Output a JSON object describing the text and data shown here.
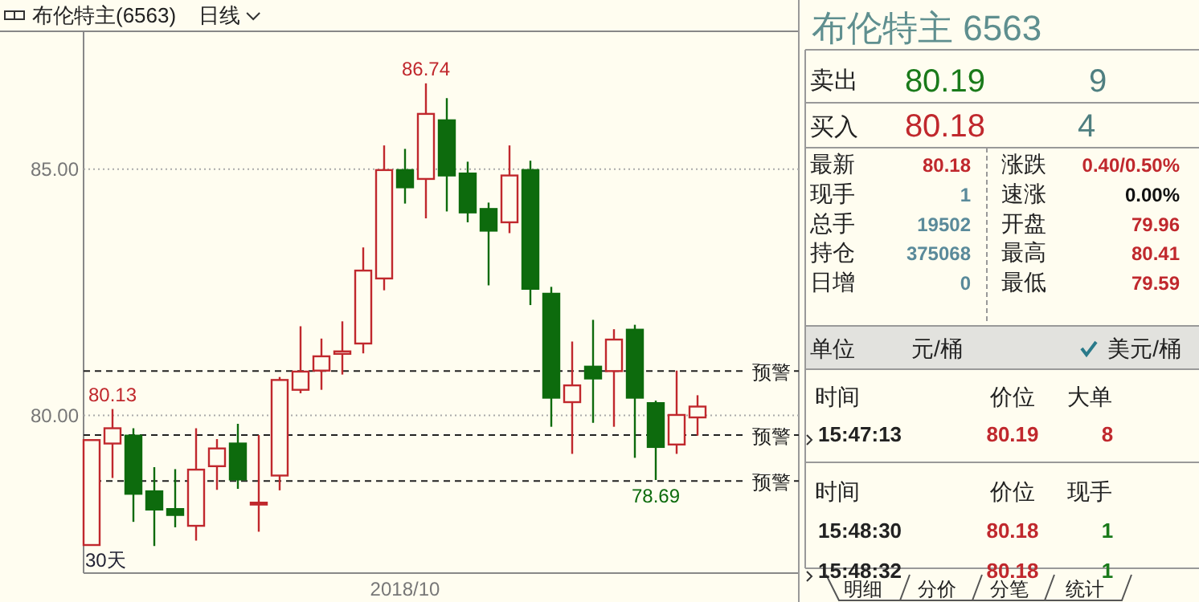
{
  "chart_data": [
    {
      "type": "candlestick",
      "title": "布伦特主(6563)",
      "subtitle": "日线",
      "categories": [
        null,
        null,
        null,
        null,
        null,
        null,
        null,
        null,
        null,
        null,
        null,
        null,
        null,
        null,
        null,
        "2018/10",
        null,
        null,
        null,
        null,
        null,
        null,
        null,
        null,
        null,
        null,
        null,
        null,
        null,
        null
      ],
      "ohlc": [
        [
          77.37,
          79.5,
          77.37,
          79.5
        ],
        [
          79.43,
          80.13,
          78.73,
          79.74
        ],
        [
          79.59,
          79.74,
          77.84,
          78.41
        ],
        [
          78.46,
          78.95,
          77.35,
          78.09
        ],
        [
          78.1,
          78.91,
          77.73,
          77.98
        ],
        [
          77.76,
          79.74,
          77.46,
          78.9
        ],
        [
          78.97,
          79.52,
          78.49,
          79.33
        ],
        [
          79.43,
          79.83,
          78.51,
          78.7
        ],
        [
          78.2,
          79.6,
          77.64,
          78.23
        ],
        [
          78.78,
          80.78,
          78.48,
          80.72
        ],
        [
          80.52,
          81.81,
          80.45,
          80.89
        ],
        [
          80.91,
          81.56,
          80.52,
          81.2
        ],
        [
          81.25,
          81.91,
          80.83,
          81.3
        ],
        [
          81.46,
          83.41,
          81.26,
          82.94
        ],
        [
          82.78,
          85.48,
          82.54,
          84.98
        ],
        [
          84.98,
          85.41,
          84.3,
          84.63
        ],
        [
          84.8,
          86.74,
          84.0,
          86.12
        ],
        [
          85.99,
          86.44,
          84.14,
          84.87
        ],
        [
          84.91,
          85.15,
          83.92,
          84.12
        ],
        [
          84.19,
          84.32,
          82.64,
          83.75
        ],
        [
          83.92,
          85.48,
          83.7,
          84.87
        ],
        [
          84.98,
          85.17,
          82.24,
          82.57
        ],
        [
          82.47,
          82.61,
          79.77,
          80.36
        ],
        [
          80.27,
          81.5,
          79.22,
          80.61
        ],
        [
          80.99,
          81.94,
          79.85,
          80.75
        ],
        [
          80.9,
          81.75,
          79.77,
          81.54
        ],
        [
          81.74,
          81.84,
          79.14,
          80.36
        ],
        [
          80.25,
          80.3,
          78.69,
          79.36
        ],
        [
          79.41,
          80.91,
          79.22,
          80.01
        ],
        [
          79.96,
          80.41,
          79.59,
          80.18
        ]
      ],
      "colors": [
        "#c0282d",
        "#c0282d",
        "#0d6b0d",
        "#0d6b0d",
        "#0d6b0d",
        "#c0282d",
        "#c0282d",
        "#0d6b0d",
        "#c0282d",
        "#c0282d",
        "#c0282d",
        "#c0282d",
        "#c0282d",
        "#c0282d",
        "#c0282d",
        "#0d6b0d",
        "#c0282d",
        "#0d6b0d",
        "#0d6b0d",
        "#0d6b0d",
        "#c0282d",
        "#0d6b0d",
        "#0d6b0d",
        "#c0282d",
        "#0d6b0d",
        "#c0282d",
        "#0d6b0d",
        "#0d6b0d",
        "#c0282d",
        "#c0282d"
      ],
      "ylim": [
        76.8,
        87.78
      ],
      "yticks": [
        {
          "value": 80,
          "label": "80.00"
        },
        {
          "value": 85,
          "label": "85.00"
        }
      ],
      "grid": "y",
      "ref_lines": [
        {
          "axis": "y",
          "value": 80.9,
          "label": "预警",
          "line_style": "dashed"
        },
        {
          "axis": "y",
          "value": 79.6,
          "label": "预警",
          "line_style": "dashed"
        },
        {
          "axis": "y",
          "value": 78.67,
          "label": "预警",
          "line_style": "dashed"
        }
      ],
      "annotations": [
        {
          "text": "80.13",
          "y": 80.13
        },
        {
          "text": "86.74",
          "y": 86.74
        },
        {
          "text": "78.69",
          "y": 78.69
        },
        "30天"
      ]
    },
    {
      "type": "other",
      "title": "布伦特主  6563",
      "annotations": [
        "卖出",
        "80.19",
        "9",
        "买入",
        "80.18",
        "4",
        "最新",
        "80.18",
        "涨跌",
        "0.40/0.50%",
        "现手",
        "1",
        "速涨",
        "0.00%",
        "总手",
        "19502",
        "开盘",
        "79.96",
        "持仓",
        "375068",
        "最高",
        "80.41",
        "日增",
        "0",
        "最低",
        "79.59",
        "单位",
        "元/桶",
        "美元/桶",
        "时间",
        "价位",
        "大单",
        "15:47:13",
        "80.19",
        "8",
        "时间",
        "价位",
        "现手",
        "15:48:30",
        "80.18",
        "1",
        "15:48:32",
        "80.18",
        "1",
        "明细",
        "分价",
        "分笔",
        "统计"
      ],
      "colors": [
        "#222222",
        "#1a7a1a",
        "#4f7f80",
        "#222222",
        "#c0282d",
        "#4f7f80",
        "#222222",
        "#c0282d",
        "#222222",
        "#c0282d",
        "#222222",
        "#5a8a9a",
        "#222222",
        "#111111",
        "#222222",
        "#5a8a9a",
        "#222222",
        "#c0282d",
        "#222222",
        "#5a8a9a",
        "#222222",
        "#c0282d",
        "#222222",
        "#5a8a9a",
        "#222222",
        "#c0282d",
        "#222222",
        "#222222",
        "#222222",
        "#222222",
        "#222222",
        "#222222",
        "#222222",
        "#c0282d",
        "#c0282d",
        "#222222",
        "#222222",
        "#222222",
        "#222222",
        "#c0282d",
        "#1a7a1a",
        "#222222",
        "#c0282d",
        "#1a7a1a",
        "#222222",
        "#222222",
        "#222222",
        "#222222"
      ]
    }
  ]
}
